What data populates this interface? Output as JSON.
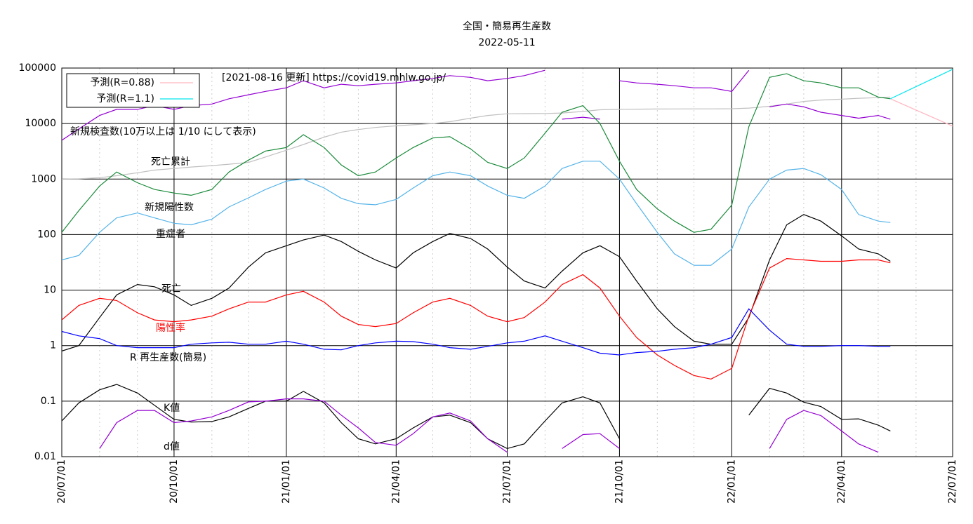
{
  "chart_data": {
    "type": "line",
    "title": "全国・簡易再生産数",
    "subtitle": "2022-05-11",
    "log_y": true,
    "grid": true,
    "source": "[2021-08-16 更新] https://covid19.mhlw.go.jp/",
    "annotations": [
      {
        "text": "新規検査数(10万以上は 1/10 にして表示)"
      },
      {
        "text": "死亡累計"
      },
      {
        "text": "新規陽性数"
      },
      {
        "text": "重症者"
      },
      {
        "text": "死亡"
      },
      {
        "text": "陽性率",
        "color": "#ff0000"
      },
      {
        "text": "R  再生産数(簡易)"
      },
      {
        "text": "K値"
      },
      {
        "text": "d値"
      }
    ],
    "xlim": [
      "2020-07-01",
      "2022-07-01"
    ],
    "xticks": [
      {
        "value": "2020-07-01",
        "label": "20/07/01"
      },
      {
        "value": "2020-10-01",
        "label": "20/10/01"
      },
      {
        "value": "2021-01-01",
        "label": "21/01/01"
      },
      {
        "value": "2021-04-01",
        "label": "21/04/01"
      },
      {
        "value": "2021-07-01",
        "label": "21/07/01"
      },
      {
        "value": "2021-10-01",
        "label": "21/10/01"
      },
      {
        "value": "2022-01-01",
        "label": "22/01/01"
      },
      {
        "value": "2022-04-01",
        "label": "22/04/01"
      },
      {
        "value": "2022-07-01",
        "label": "22/07/01"
      }
    ],
    "ylim": [
      0.01,
      100000
    ],
    "yticks": [
      0.01,
      0.1,
      1,
      10,
      100,
      1000,
      10000,
      100000
    ],
    "x": [
      "2020-07-01",
      "2020-07-15",
      "2020-08-01",
      "2020-08-15",
      "2020-09-01",
      "2020-09-15",
      "2020-10-01",
      "2020-10-15",
      "2020-11-01",
      "2020-11-15",
      "2020-12-01",
      "2020-12-15",
      "2021-01-01",
      "2021-01-15",
      "2021-02-01",
      "2021-02-15",
      "2021-03-01",
      "2021-03-15",
      "2021-04-01",
      "2021-04-15",
      "2021-05-01",
      "2021-05-15",
      "2021-06-01",
      "2021-06-15",
      "2021-07-01",
      "2021-07-15",
      "2021-08-01",
      "2021-08-15",
      "2021-09-01",
      "2021-09-15",
      "2021-10-01",
      "2021-10-15",
      "2021-11-01",
      "2021-11-15",
      "2021-12-01",
      "2021-12-15",
      "2022-01-01",
      "2022-01-15",
      "2022-02-01",
      "2022-02-15",
      "2022-03-01",
      "2022-03-15",
      "2022-04-01",
      "2022-04-15",
      "2022-05-01",
      "2022-05-11"
    ],
    "series": [
      {
        "color": "#c0c0c0",
        "values": [
          1000,
          1010,
          1060,
          1150,
          1300,
          1450,
          1550,
          1650,
          1750,
          1850,
          2000,
          2500,
          3300,
          4200,
          5700,
          7000,
          7800,
          8500,
          9100,
          9500,
          10000,
          10800,
          12500,
          14000,
          15000,
          15100,
          15200,
          15500,
          16500,
          17700,
          18000,
          18200,
          18300,
          18350,
          18400,
          18400,
          18500,
          19000,
          20500,
          22500,
          25000,
          26500,
          27500,
          28500,
          29300,
          30000
        ]
      },
      {
        "color": "#9400d3",
        "values": [
          5000,
          8000,
          14000,
          18000,
          18000,
          21000,
          18000,
          21000,
          22500,
          28000,
          33000,
          38000,
          44000,
          59000,
          44000,
          51000,
          48000,
          51000,
          54000,
          59000,
          65000,
          73000,
          68000,
          59000,
          65000,
          73000,
          91000,
          null,
          null,
          null,
          59000,
          54000,
          51000,
          48000,
          44000,
          44000,
          38000,
          91000,
          null,
          null,
          null,
          null,
          null,
          null,
          null,
          null
        ]
      },
      {
        "color": "#9400d3",
        "values": [
          null,
          null,
          null,
          null,
          null,
          null,
          null,
          null,
          null,
          null,
          null,
          null,
          null,
          null,
          null,
          null,
          null,
          null,
          null,
          null,
          null,
          null,
          null,
          null,
          null,
          null,
          null,
          12000,
          13000,
          12000,
          null,
          null,
          null,
          null,
          null,
          null,
          null,
          null,
          20000,
          22500,
          20000,
          16000,
          14000,
          12500,
          14000,
          12000
        ]
      },
      {
        "color": "#1a8a3a",
        "values": [
          110,
          270,
          750,
          1340,
          860,
          650,
          560,
          510,
          650,
          1340,
          2200,
          3200,
          3700,
          6300,
          3700,
          1800,
          1150,
          1340,
          2400,
          3700,
          5500,
          5800,
          3500,
          2000,
          1550,
          2400,
          6700,
          16000,
          21000,
          10000,
          2100,
          650,
          290,
          175,
          110,
          125,
          340,
          8800,
          68000,
          79000,
          59000,
          54000,
          44000,
          44000,
          30000,
          28000
        ]
      },
      {
        "color": "#56b4e9",
        "values": [
          35,
          42,
          110,
          200,
          245,
          200,
          160,
          150,
          190,
          315,
          460,
          650,
          920,
          1000,
          690,
          450,
          360,
          345,
          430,
          690,
          1150,
          1340,
          1150,
          750,
          510,
          450,
          750,
          1550,
          2100,
          2100,
          1000,
          360,
          110,
          45,
          28,
          28,
          55,
          315,
          1000,
          1450,
          1550,
          1200,
          650,
          230,
          175,
          165
        ]
      },
      {
        "color": "#000000",
        "values": [
          0.8,
          1,
          3.2,
          8.2,
          12.6,
          11.5,
          8.2,
          5.3,
          7.1,
          10.9,
          26,
          47,
          63,
          80,
          98,
          75,
          50,
          35,
          25,
          47,
          75,
          105,
          85,
          55,
          26,
          14.6,
          10.9,
          22,
          47,
          63,
          40,
          14.6,
          4.6,
          2.2,
          1.2,
          1.06,
          1.06,
          3.2,
          35,
          150,
          230,
          175,
          95,
          55,
          45,
          33
        ]
      },
      {
        "color": "#ff0000",
        "values": [
          2.9,
          5.3,
          7.1,
          6.5,
          3.9,
          2.9,
          2.7,
          2.9,
          3.4,
          4.6,
          6.1,
          6.1,
          8.2,
          9.5,
          6.1,
          3.4,
          2.4,
          2.2,
          2.5,
          3.9,
          6.1,
          7.1,
          5.3,
          3.4,
          2.7,
          3.2,
          6.1,
          12.6,
          19,
          10.9,
          3.4,
          1.4,
          0.68,
          0.44,
          0.29,
          0.25,
          0.39,
          3.4,
          25,
          37,
          35,
          33,
          33,
          35,
          35,
          31
        ]
      },
      {
        "color": "#0000ff",
        "values": [
          1.8,
          1.5,
          1.34,
          1,
          0.92,
          0.92,
          0.92,
          1.06,
          1.12,
          1.15,
          1.06,
          1.06,
          1.2,
          1.06,
          0.86,
          0.84,
          1,
          1.12,
          1.2,
          1.18,
          1.06,
          0.92,
          0.86,
          0.97,
          1.12,
          1.2,
          1.5,
          1.2,
          0.92,
          0.73,
          0.68,
          0.75,
          0.79,
          0.86,
          0.92,
          1.06,
          1.4,
          4.6,
          1.9,
          1.06,
          0.97,
          0.97,
          1,
          1,
          0.97,
          0.97
        ]
      },
      {
        "color": "#000000",
        "values": [
          0.044,
          0.093,
          0.16,
          0.2,
          0.14,
          0.084,
          0.047,
          0.042,
          0.043,
          0.052,
          0.074,
          0.1,
          0.1,
          0.15,
          0.093,
          0.041,
          0.021,
          0.017,
          0.021,
          0.033,
          0.052,
          0.056,
          0.041,
          0.021,
          0.014,
          0.017,
          0.044,
          0.093,
          0.12,
          0.093,
          0.021,
          null,
          null,
          null,
          null,
          null,
          null,
          0.056,
          0.17,
          0.14,
          0.096,
          0.08,
          0.047,
          0.048,
          0.037,
          0.029
        ]
      },
      {
        "color": "#9400d3",
        "values": [
          null,
          null,
          0.014,
          0.041,
          0.068,
          0.068,
          0.041,
          0.044,
          0.052,
          0.068,
          0.097,
          0.1,
          0.11,
          0.11,
          0.1,
          0.056,
          0.033,
          0.018,
          0.016,
          0.026,
          0.052,
          0.061,
          0.044,
          0.021,
          0.012,
          null,
          null,
          0.014,
          0.025,
          0.026,
          0.014,
          null,
          null,
          null,
          null,
          null,
          null,
          null,
          0.014,
          0.047,
          0.068,
          0.055,
          0.029,
          0.017,
          0.012,
          null
        ]
      },
      {
        "name": "予測(R=0.88)",
        "color": "#ffb6c1",
        "x": [
          "2022-05-11",
          "2022-07-01"
        ],
        "values": [
          28000,
          9000
        ]
      },
      {
        "name": "予測(R=1.1)",
        "color": "#00e5ee",
        "x": [
          "2022-05-11",
          "2022-07-01"
        ],
        "values": [
          28000,
          95000
        ]
      }
    ]
  }
}
